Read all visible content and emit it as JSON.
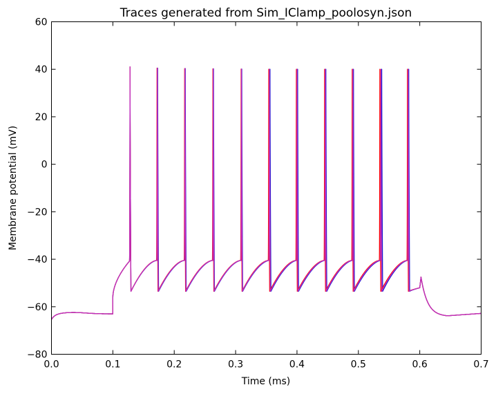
{
  "chart_data": {
    "type": "line",
    "title": "Traces generated from Sim_IClamp_poolosyn.json",
    "xlabel": "Time (ms)",
    "ylabel": "Membrane potential (mV)",
    "xlim": [
      0.0,
      0.7
    ],
    "ylim": [
      -80,
      60
    ],
    "xticks": [
      "0.0",
      "0.1",
      "0.2",
      "0.3",
      "0.4",
      "0.5",
      "0.6",
      "0.7"
    ],
    "yticks": [
      "60",
      "40",
      "20",
      "0",
      "−20",
      "−40",
      "−60",
      "−80"
    ],
    "grid": false,
    "series": [
      {
        "color": "#1515d0",
        "stimulus": [
          0.1,
          0.6
        ],
        "spike_times": [
          0.128,
          0.173,
          0.218,
          0.264,
          0.31,
          0.356,
          0.401,
          0.447,
          0.492,
          0.538,
          0.582
        ],
        "spike_peaks": [
          41,
          40.5,
          40.3,
          40.2,
          40.1,
          40,
          40,
          40,
          40,
          40,
          40
        ],
        "rest": -63.0,
        "trough": -53.5,
        "threshold": -40.5
      },
      {
        "color": "#ff0000",
        "stimulus": [
          0.1,
          0.6
        ],
        "spike_times": [
          0.128,
          0.172,
          0.217,
          0.263,
          0.309,
          0.354,
          0.399,
          0.445,
          0.49,
          0.535,
          0.58
        ],
        "spike_peaks": [
          41,
          40.5,
          40.3,
          40.2,
          40.1,
          40,
          40,
          40,
          40,
          40,
          40
        ],
        "rest": -63.0,
        "trough": -53.5,
        "threshold": -40.5
      },
      {
        "color": "#bf30bf",
        "stimulus": [
          0.1,
          0.6
        ],
        "spike_times": [
          0.128,
          0.1725,
          0.2175,
          0.2635,
          0.3095,
          0.355,
          0.4,
          0.446,
          0.491,
          0.5365,
          0.581
        ],
        "spike_peaks": [
          41,
          40.5,
          40.3,
          40.2,
          40.1,
          40,
          40,
          40,
          40,
          40,
          40
        ],
        "rest": -63.0,
        "trough": -53.5,
        "threshold": -40.5
      }
    ]
  }
}
